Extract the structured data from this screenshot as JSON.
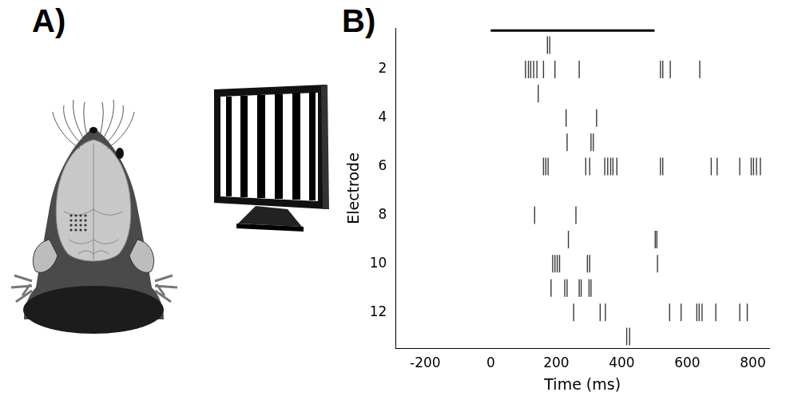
{
  "panel_labels": [
    "A)",
    "B)"
  ],
  "chart_data": {
    "type": "raster",
    "x_label": "Time (ms)",
    "y_label": "Electrode",
    "xlim": [
      -290,
      850
    ],
    "xticks": [
      -200,
      0,
      200,
      400,
      600,
      800
    ],
    "ylim": [
      0.3,
      13.5
    ],
    "yticks": [
      2,
      4,
      6,
      8,
      10,
      12
    ],
    "grid": false,
    "marker": "vline",
    "color": "#3a3a3a",
    "stimulus_bar": {
      "x": [
        0,
        500
      ],
      "y": 0.4,
      "color": "#000000"
    },
    "y": [
      1,
      2,
      3,
      4,
      5,
      6,
      7,
      8,
      9,
      10,
      11,
      12,
      13
    ],
    "spike_times": [
      [
        173,
        180
      ],
      [
        106,
        115,
        122,
        131,
        141,
        161,
        196,
        270,
        518,
        525,
        548,
        638
      ],
      [
        145
      ],
      [
        230,
        323
      ],
      [
        233,
        306,
        313
      ],
      [
        161,
        168,
        175,
        290,
        302,
        348,
        357,
        366,
        373,
        385,
        518,
        525,
        673,
        691,
        760,
        795,
        802,
        811,
        823
      ],
      [],
      [
        134,
        260
      ],
      [
        237,
        502,
        507
      ],
      [
        189,
        196,
        203,
        210,
        295,
        302,
        509
      ],
      [
        184,
        226,
        233,
        270,
        276,
        300,
        306
      ],
      [
        253,
        334,
        350,
        546,
        581,
        629,
        636,
        645,
        687,
        760,
        783
      ],
      [
        415,
        424
      ]
    ]
  }
}
